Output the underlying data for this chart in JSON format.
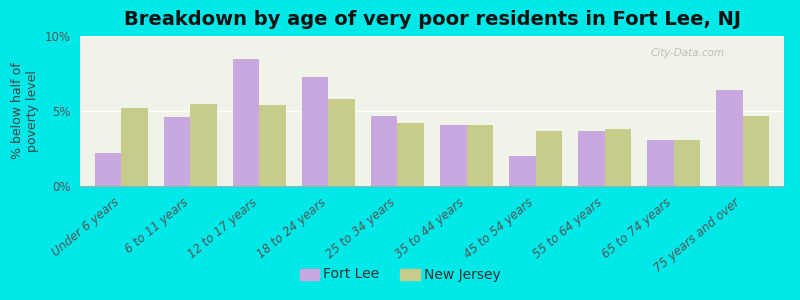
{
  "title": "Breakdown by age of very poor residents in Fort Lee, NJ",
  "ylabel": "% below half of\npoverty level",
  "categories": [
    "Under 6 years",
    "6 to 11 years",
    "12 to 17 years",
    "18 to 24 years",
    "25 to 34 years",
    "35 to 44 years",
    "45 to 54 years",
    "55 to 64 years",
    "65 to 74 years",
    "75 years and over"
  ],
  "fort_lee": [
    2.2,
    4.6,
    8.5,
    7.3,
    4.7,
    4.1,
    2.0,
    3.7,
    3.1,
    6.4
  ],
  "new_jersey": [
    5.2,
    5.5,
    5.4,
    5.8,
    4.2,
    4.1,
    3.7,
    3.8,
    3.1,
    4.7
  ],
  "fort_lee_color": "#c9a8e0",
  "nj_color": "#c8cc8a",
  "background_outer": "#00e8e8",
  "background_plot": "#f0f4e8",
  "ylim": [
    0,
    10
  ],
  "yticks": [
    0,
    5,
    10
  ],
  "ytick_labels": [
    "0%",
    "5%",
    "10%"
  ],
  "title_fontsize": 14,
  "axis_label_fontsize": 9,
  "tick_fontsize": 8.5,
  "legend_fontsize": 10,
  "watermark_text": "City-Data.com"
}
